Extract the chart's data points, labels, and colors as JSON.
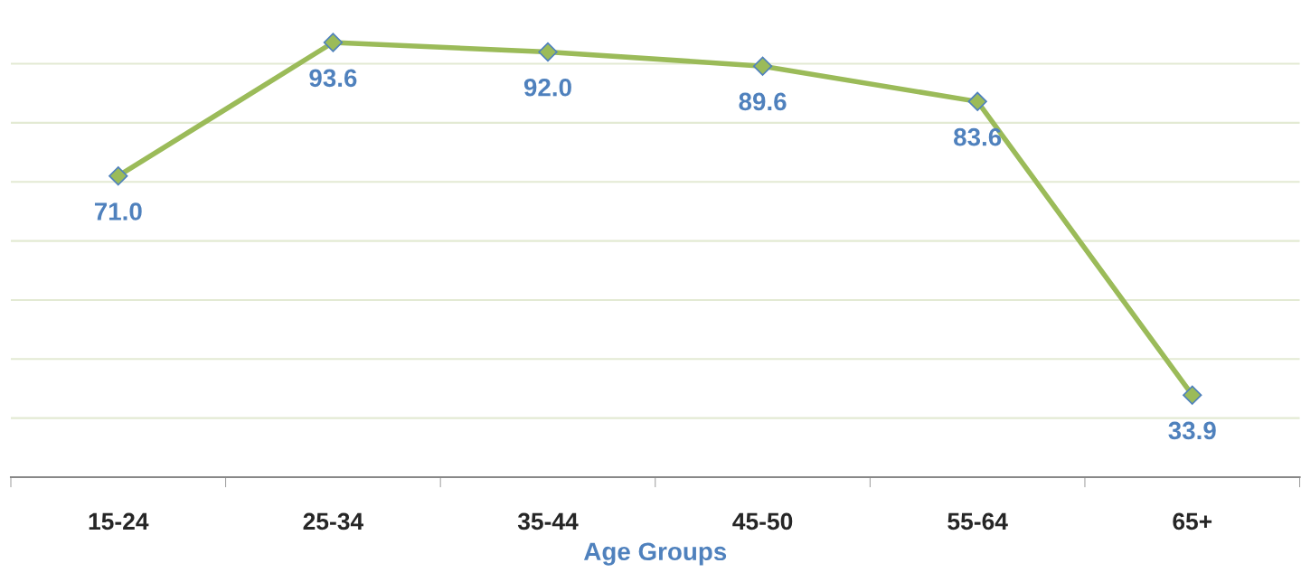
{
  "chart_data": {
    "type": "line",
    "xlabel": "Age Groups",
    "categories": [
      "15-24",
      "25-34",
      "35-44",
      "45-50",
      "55-64",
      "65+"
    ],
    "series": [
      {
        "color": "#9bbb59",
        "values": [
          71.0,
          93.6,
          92.0,
          89.6,
          83.6,
          33.9
        ],
        "value_labels": [
          "71.0",
          "93.6",
          "92.0",
          "89.6",
          "83.6",
          "33.9"
        ]
      }
    ],
    "yticks": [
      {
        "value": 20,
        "label": null
      },
      {
        "value": 30,
        "label": null
      },
      {
        "value": 40,
        "label": null
      },
      {
        "value": 50,
        "label": null
      },
      {
        "value": 60,
        "label": null
      },
      {
        "value": 70,
        "label": null
      },
      {
        "value": 80,
        "label": null
      },
      {
        "value": 90,
        "label": null
      }
    ],
    "tick_labels": "x",
    "grid": "y",
    "marker": "diamond",
    "line_style": "solid"
  }
}
